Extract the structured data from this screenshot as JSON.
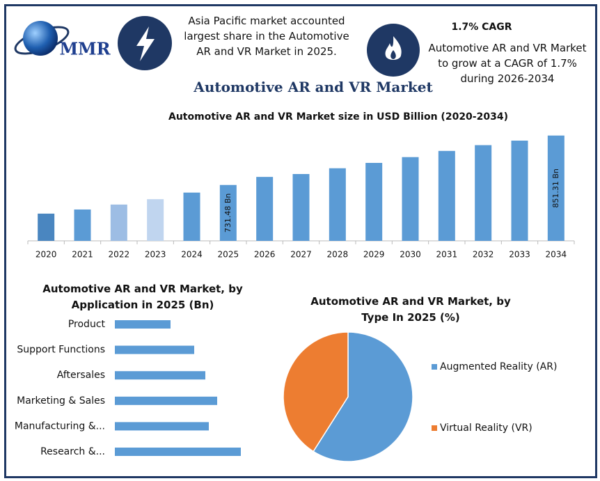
{
  "header": {
    "logo": "MMR",
    "left_text": "Asia Pacific market accounted largest share in the Automotive AR and VR Market in 2025.",
    "cagr_title": "1.7% CAGR",
    "cagr_text": "Automotive AR and VR Market to grow at a CAGR of 1.7% during 2026-2034",
    "title": "Automotive AR and VR Market"
  },
  "chart_data": [
    {
      "type": "bar",
      "title": "Automotive AR and VR Market size in USD Billion (2020-2034)",
      "categories": [
        "2020",
        "2021",
        "2022",
        "2023",
        "2024",
        "2025",
        "2026",
        "2027",
        "2028",
        "2029",
        "2030",
        "2031",
        "2032",
        "2033",
        "2034"
      ],
      "values": [
        662,
        672,
        684,
        697,
        713,
        731.48,
        751,
        758,
        772,
        785,
        799,
        814,
        828,
        839,
        851.31
      ],
      "value_labels": [
        null,
        null,
        null,
        null,
        null,
        "731.48 Bn",
        null,
        null,
        null,
        null,
        null,
        null,
        null,
        null,
        "851.31 Bn"
      ],
      "colors": [
        "#4a86c0",
        "#5b9bd5",
        "#9dbde4",
        "#c0d5ef",
        "#5b9bd5",
        "#5b9bd5",
        "#5b9bd5",
        "#5b9bd5",
        "#5b9bd5",
        "#5b9bd5",
        "#5b9bd5",
        "#5b9bd5",
        "#5b9bd5",
        "#5b9bd5",
        "#5b9bd5"
      ],
      "ylim": [
        596,
        866
      ]
    },
    {
      "type": "hbar",
      "title": "Automotive AR and VR Market, by Application in 2025 (Bn)",
      "categories": [
        "Product",
        "Support Functions",
        "Aftersales",
        "Marketing & Sales",
        "Manufacturing &...",
        "Research &..."
      ],
      "values": [
        80,
        114,
        130,
        147,
        135,
        181
      ],
      "color": "#5b9bd5",
      "xlim": [
        0,
        200
      ]
    },
    {
      "type": "pie",
      "title": "Automotive AR and VR Market, by Type In 2025 (%)",
      "categories": [
        "Augmented Reality (AR)",
        "Virtual Reality (VR)"
      ],
      "values": [
        59,
        41
      ],
      "colors": [
        "#5b9bd5",
        "#ed7d31"
      ]
    }
  ]
}
